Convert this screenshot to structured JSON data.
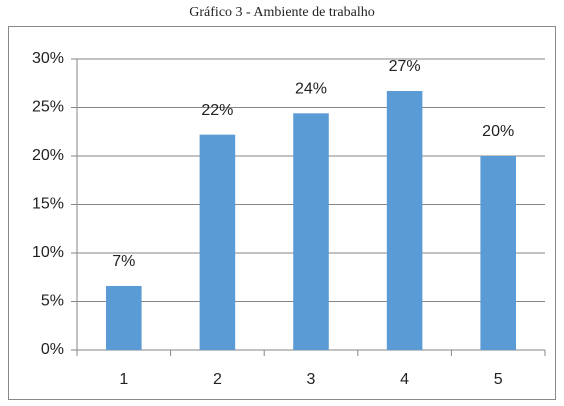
{
  "chart_data": {
    "type": "bar",
    "title": "Gráfico 3 - Ambiente de trabalho",
    "categories": [
      "1",
      "2",
      "3",
      "4",
      "5"
    ],
    "values": [
      6.6,
      22.2,
      24.4,
      26.7,
      20
    ],
    "value_labels": [
      "7%",
      "22%",
      "24%",
      "27%",
      "20%"
    ],
    "color": "#5b9bd5",
    "ylim": [
      0,
      30
    ],
    "yticks": [
      {
        "value": 0,
        "label": "0%"
      },
      {
        "value": 5,
        "label": "5%"
      },
      {
        "value": 10,
        "label": "10%"
      },
      {
        "value": 15,
        "label": "15%"
      },
      {
        "value": 20,
        "label": "20%"
      },
      {
        "value": 25,
        "label": "25%"
      },
      {
        "value": 30,
        "label": "30%"
      }
    ],
    "grid": true
  }
}
